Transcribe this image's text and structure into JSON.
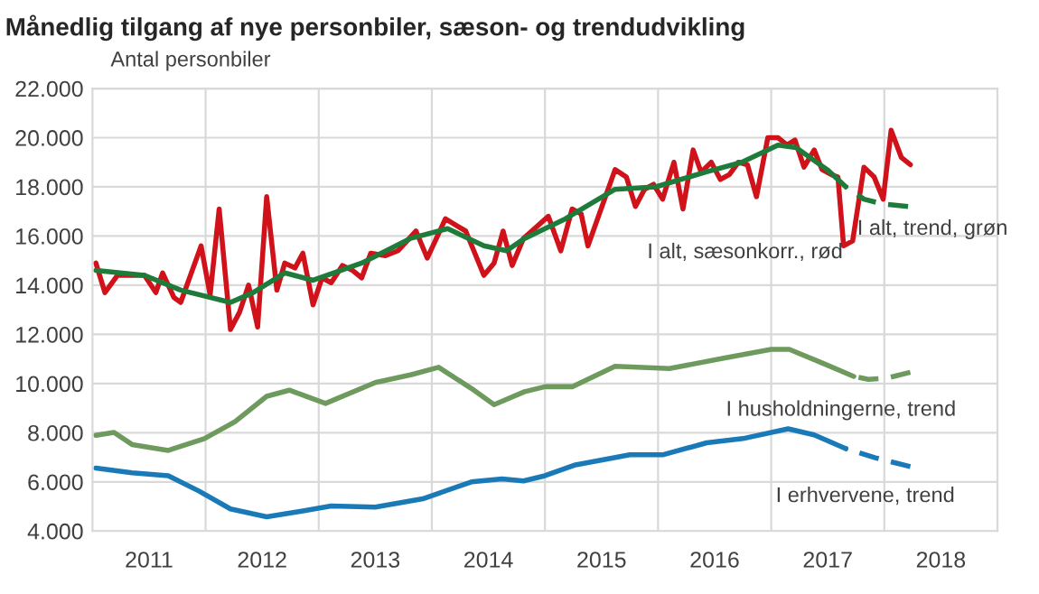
{
  "chart_data": {
    "type": "line",
    "title": "Månedlig tilgang af nye personbiler, sæson- og trendudvikling",
    "ylabel": "Antal personbiler",
    "xlim": [
      2011,
      2019
    ],
    "xticks": [
      {
        "value": 2012,
        "label": null
      },
      {
        "value": 2013,
        "label": null
      },
      {
        "value": 2014,
        "label": null
      },
      {
        "value": 2015,
        "label": null
      },
      {
        "value": 2016,
        "label": null
      },
      {
        "value": 2017,
        "label": null
      },
      {
        "value": 2018,
        "label": null
      },
      {
        "value": 2011.5,
        "label": "2011"
      },
      {
        "value": 2012.5,
        "label": "2012"
      },
      {
        "value": 2013.5,
        "label": "2013"
      },
      {
        "value": 2014.5,
        "label": "2014"
      },
      {
        "value": 2015.5,
        "label": "2015"
      },
      {
        "value": 2016.5,
        "label": "2016"
      },
      {
        "value": 2017.5,
        "label": "2017"
      },
      {
        "value": 2018.5,
        "label": "2018"
      }
    ],
    "ylim": [
      4000,
      22000
    ],
    "yticks": [
      {
        "value": 4000,
        "label": "4.000"
      },
      {
        "value": 6000,
        "label": "6.000"
      },
      {
        "value": 8000,
        "label": "8.000"
      },
      {
        "value": 10000,
        "label": "10.000"
      },
      {
        "value": 12000,
        "label": "12.000"
      },
      {
        "value": 14000,
        "label": "14.000"
      },
      {
        "value": 16000,
        "label": "16.000"
      },
      {
        "value": 18000,
        "label": "18.000"
      },
      {
        "value": 20000,
        "label": "20.000"
      },
      {
        "value": 22000,
        "label": "22.000"
      }
    ],
    "grid": true,
    "series": [
      {
        "color": "#1a7ab8",
        "line_style": "solid",
        "x": [
          2011.03,
          2011.35,
          2011.67,
          2011.94,
          2012.22,
          2012.54,
          2012.86,
          2013.11,
          2013.5,
          2013.92,
          2014.35,
          2014.62,
          2014.81,
          2015.0,
          2015.27,
          2015.75,
          2016.04,
          2016.43,
          2016.75,
          2017.15,
          2017.38,
          2017.66
        ],
        "values": [
          6560,
          6370,
          6250,
          5630,
          4900,
          4580,
          4820,
          5020,
          4970,
          5310,
          6000,
          6120,
          6040,
          6250,
          6690,
          7100,
          7100,
          7590,
          7760,
          8160,
          7910,
          7350
        ]
      },
      {
        "color": "#1a7ab8",
        "line_style": "dashed",
        "x": [
          2017.66,
          2017.92,
          2018.23
        ],
        "values": [
          7350,
          6980,
          6620
        ]
      },
      {
        "color": "#6e9a5e",
        "line_style": "solid",
        "x": [
          2011.03,
          2011.19,
          2011.35,
          2011.67,
          2011.99,
          2012.26,
          2012.54,
          2012.74,
          2013.06,
          2013.5,
          2013.82,
          2014.06,
          2014.35,
          2014.55,
          2014.82,
          2015.0,
          2015.24,
          2015.62,
          2016.1,
          2016.58,
          2017.0,
          2017.16,
          2017.48,
          2017.73
        ],
        "values": [
          7890,
          8010,
          7520,
          7280,
          7760,
          8450,
          9480,
          9730,
          9190,
          10040,
          10360,
          10660,
          9800,
          9140,
          9670,
          9870,
          9870,
          10700,
          10610,
          11030,
          11390,
          11390,
          10780,
          10290
        ]
      },
      {
        "color": "#6e9a5e",
        "line_style": "dashed",
        "x": [
          2017.73,
          2017.86,
          2018.02,
          2018.23
        ],
        "values": [
          10290,
          10170,
          10220,
          10460
        ]
      },
      {
        "color": "#d0121b",
        "line_style": "solid",
        "x": [
          2011.03,
          2011.11,
          2011.22,
          2011.34,
          2011.46,
          2011.56,
          2011.62,
          2011.72,
          2011.78,
          2011.96,
          2012.04,
          2012.12,
          2012.22,
          2012.3,
          2012.38,
          2012.46,
          2012.54,
          2012.63,
          2012.7,
          2012.79,
          2012.86,
          2012.95,
          2013.03,
          2013.11,
          2013.21,
          2013.3,
          2013.38,
          2013.46,
          2013.59,
          2013.7,
          2013.86,
          2013.96,
          2014.12,
          2014.3,
          2014.46,
          2014.55,
          2014.63,
          2014.71,
          2014.81,
          2015.03,
          2015.14,
          2015.24,
          2015.32,
          2015.38,
          2015.62,
          2015.72,
          2015.8,
          2015.88,
          2015.96,
          2016.04,
          2016.14,
          2016.22,
          2016.31,
          2016.38,
          2016.47,
          2016.55,
          2016.63,
          2016.71,
          2016.79,
          2016.87,
          2016.97,
          2017.06,
          2017.14,
          2017.21,
          2017.29,
          2017.38,
          2017.45,
          2017.53,
          2017.59,
          2017.64,
          2017.72,
          2017.82,
          2017.91,
          2017.99,
          2018.06,
          2018.15,
          2018.23
        ],
        "values": [
          14900,
          13700,
          14400,
          14400,
          14400,
          13700,
          14500,
          13500,
          13300,
          15600,
          13600,
          17100,
          12200,
          12900,
          14000,
          12300,
          17600,
          13800,
          14900,
          14700,
          15300,
          13200,
          14300,
          14100,
          14800,
          14600,
          14300,
          15300,
          15200,
          15400,
          16200,
          15100,
          16700,
          16200,
          14400,
          14900,
          16200,
          14800,
          15900,
          16800,
          15400,
          17100,
          16900,
          15600,
          18700,
          18400,
          17200,
          17900,
          18100,
          17500,
          19000,
          17100,
          19500,
          18600,
          19000,
          18300,
          18500,
          19000,
          18900,
          17600,
          20000,
          20000,
          19700,
          19900,
          18800,
          19500,
          18700,
          18500,
          18400,
          15600,
          15800,
          18800,
          18400,
          17500,
          20300,
          19200,
          18900
        ]
      },
      {
        "color": "#1e7b3a",
        "line_style": "solid",
        "x": [
          2011.03,
          2011.46,
          2011.78,
          2012.22,
          2012.42,
          2012.7,
          2012.95,
          2013.38,
          2013.81,
          2014.14,
          2014.46,
          2014.66,
          2014.82,
          2015.18,
          2015.62,
          2015.98,
          2016.42,
          2016.74,
          2017.06,
          2017.22,
          2017.495,
          2017.66
        ],
        "values": [
          14600,
          14400,
          13800,
          13300,
          13700,
          14500,
          14200,
          14900,
          15900,
          16300,
          15600,
          15400,
          15900,
          16700,
          17900,
          18000,
          18600,
          19000,
          19700,
          19600,
          18700,
          18000
        ]
      },
      {
        "color": "#1e7b3a",
        "line_style": "dashed",
        "x": [
          2017.66,
          2017.82,
          2017.99,
          2018.21
        ],
        "values": [
          18000,
          17500,
          17300,
          17200
        ]
      }
    ],
    "annotations": [
      "I alt, sæsonkorr., rød",
      "I alt, trend, grøn",
      "I husholdningerne, trend",
      "I erhvervene, trend"
    ]
  }
}
